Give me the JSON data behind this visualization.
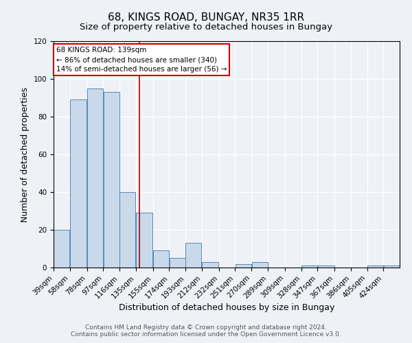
{
  "title": "68, KINGS ROAD, BUNGAY, NR35 1RR",
  "subtitle": "Size of property relative to detached houses in Bungay",
  "xlabel": "Distribution of detached houses by size in Bungay",
  "ylabel": "Number of detached properties",
  "bin_labels": [
    "39sqm",
    "58sqm",
    "78sqm",
    "97sqm",
    "116sqm",
    "135sqm",
    "155sqm",
    "174sqm",
    "193sqm",
    "212sqm",
    "232sqm",
    "251sqm",
    "270sqm",
    "289sqm",
    "309sqm",
    "328sqm",
    "347sqm",
    "367sqm",
    "386sqm",
    "405sqm",
    "424sqm"
  ],
  "bin_edges": [
    39,
    58,
    78,
    97,
    116,
    135,
    155,
    174,
    193,
    212,
    232,
    251,
    270,
    289,
    309,
    328,
    347,
    367,
    386,
    405,
    424,
    443
  ],
  "counts": [
    20,
    89,
    95,
    93,
    40,
    29,
    9,
    5,
    13,
    3,
    0,
    2,
    3,
    0,
    0,
    1,
    1,
    0,
    0,
    1,
    1
  ],
  "bar_color": "#c9d9ea",
  "bar_edge_color": "#5588bb",
  "property_size": 139,
  "vline_color": "#aa0000",
  "annotation_text": "68 KINGS ROAD: 139sqm\n← 86% of detached houses are smaller (340)\n14% of semi-detached houses are larger (56) →",
  "annotation_box_color": "#ffffff",
  "annotation_box_edge_color": "#cc0000",
  "ylim": [
    0,
    120
  ],
  "yticks": [
    0,
    20,
    40,
    60,
    80,
    100,
    120
  ],
  "footer_line1": "Contains HM Land Registry data © Crown copyright and database right 2024.",
  "footer_line2": "Contains public sector information licensed under the Open Government Licence v3.0.",
  "background_color": "#eef2f7",
  "plot_bg_color": "#eef2f7",
  "grid_color": "#ffffff",
  "title_fontsize": 11,
  "subtitle_fontsize": 9.5,
  "label_fontsize": 9,
  "tick_fontsize": 7.5,
  "annotation_fontsize": 7.5,
  "footer_fontsize": 6.5
}
